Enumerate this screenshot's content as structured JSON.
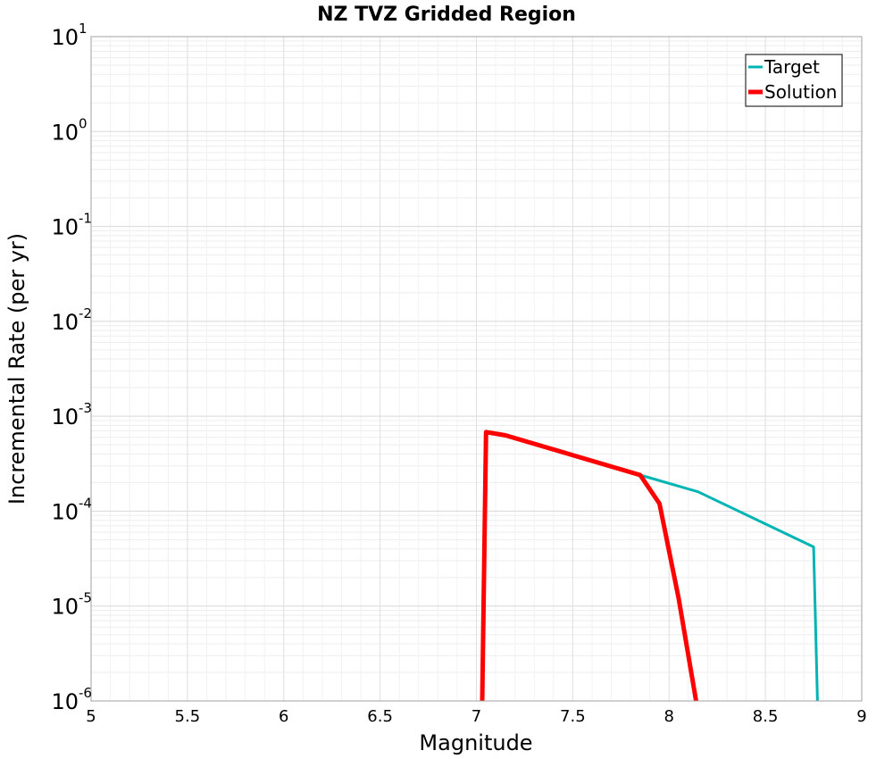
{
  "chart_data": {
    "type": "line",
    "title": "NZ TVZ Gridded Region",
    "xlabel": "Magnitude",
    "ylabel": "Incremental Rate (per yr)",
    "xlim": [
      5,
      9
    ],
    "ylim_log10": [
      -6,
      1
    ],
    "yscale": "log",
    "grid": true,
    "legend_position": "top-right",
    "x_ticks": [
      "5",
      "5.5",
      "6",
      "6.5",
      "7",
      "7.5",
      "8",
      "8.5",
      "9"
    ],
    "x_tick_values": [
      5,
      5.5,
      6,
      6.5,
      7,
      7.5,
      8,
      8.5,
      9
    ],
    "y_ticks": [
      {
        "base": "10",
        "exp": "1",
        "value": 1
      },
      {
        "base": "10",
        "exp": "0",
        "value": 0
      },
      {
        "base": "10",
        "exp": "-1",
        "value": -1
      },
      {
        "base": "10",
        "exp": "-2",
        "value": -2
      },
      {
        "base": "10",
        "exp": "-3",
        "value": -3
      },
      {
        "base": "10",
        "exp": "-4",
        "value": -4
      },
      {
        "base": "10",
        "exp": "-5",
        "value": -5
      },
      {
        "base": "10",
        "exp": "-6",
        "value": -6
      }
    ],
    "series": [
      {
        "name": "Target",
        "color": "#00b4b4",
        "x": [
          7.05,
          7.15,
          7.85,
          8.15,
          8.75,
          8.77
        ],
        "y": [
          0.00068,
          0.00063,
          0.00024,
          0.00016,
          4.2e-05,
          1e-06
        ]
      },
      {
        "name": "Solution",
        "color": "#ff0000",
        "x": [
          7.03,
          7.05,
          7.15,
          7.85,
          7.95,
          8.05,
          8.14
        ],
        "y": [
          1e-06,
          0.00068,
          0.00063,
          0.00024,
          0.00012,
          1.2e-05,
          1e-06
        ]
      }
    ]
  }
}
